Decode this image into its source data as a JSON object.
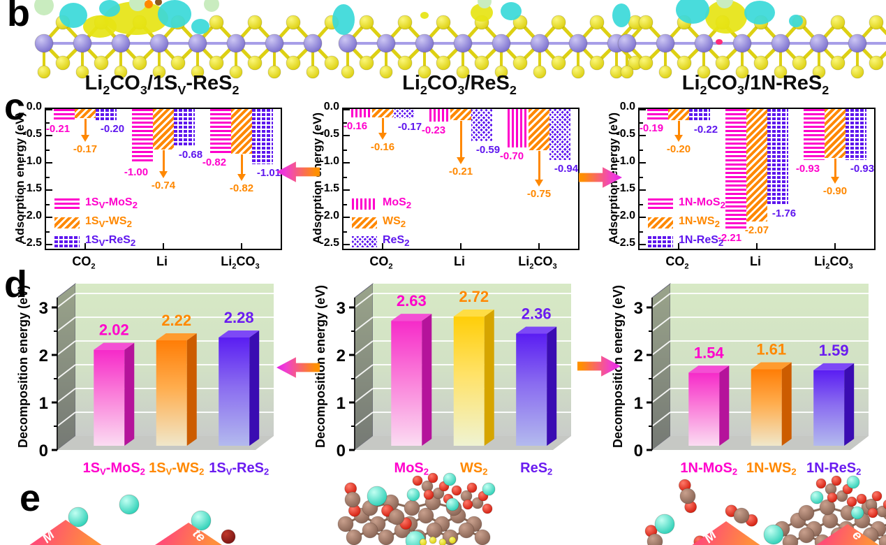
{
  "panel_labels": {
    "b": "b",
    "c": "c",
    "d": "d",
    "e": "e"
  },
  "columns": [
    {
      "title": "Li~2~CO~3~/1S~V~-ReS~2~"
    },
    {
      "title": "Li~2~CO~3~/ReS~2~"
    },
    {
      "title": "Li~2~CO~3~/1N-ReS~2~"
    }
  ],
  "colors": {
    "magenta": "#ff00cc",
    "orange": "#ff8800",
    "purple": "#5e16ee",
    "gold": "#ffc800"
  },
  "banners": [
    {
      "text": "M"
    },
    {
      "text": "te"
    },
    {
      "text": "M"
    },
    {
      "text": "e"
    }
  ],
  "chart_data": [
    {
      "id": "adsorption-1sv",
      "type": "bar",
      "title": "Li~2~CO~3~/1S~V~-ReS~2~",
      "ylabel": "Adsorption energy (eV)",
      "ylim": [
        -2.5,
        0
      ],
      "yticks": [
        "0.0",
        "-0.5",
        "-1.0",
        "-1.5",
        "-2.0",
        "-2.5"
      ],
      "categories": [
        "CO~2~",
        "Li",
        "Li~2~CO~3~"
      ],
      "legend_position": "inside bottom-left",
      "grid": false,
      "series": [
        {
          "name": "1S~V~-MoS~2~",
          "color": "#ff00cc",
          "pattern": "h",
          "values": [
            -0.21,
            -1.0,
            -0.82
          ]
        },
        {
          "name": "1S~V~-WS~2~",
          "color": "#ff8800",
          "pattern": "d",
          "values": [
            -0.17,
            -0.74,
            -0.82
          ]
        },
        {
          "name": "1S~V~-ReS~2~",
          "color": "#5e16ee",
          "pattern": "g",
          "values": [
            -0.2,
            -0.68,
            -1.01
          ]
        }
      ],
      "annotations": {
        "arrow": [
          true,
          true,
          true
        ],
        "arrow_label_at": [
          0.62,
          1.28,
          1.33
        ]
      }
    },
    {
      "id": "adsorption-pristine",
      "type": "bar",
      "title": "Li~2~CO~3~/ReS~2~",
      "ylabel": "Adsorption energy (eV)",
      "ylim": [
        -2.5,
        0
      ],
      "yticks": [
        "0.0",
        "-0.5",
        "-1.0",
        "-1.5",
        "-2.0",
        "-2.5"
      ],
      "categories": [
        "CO~2~",
        "Li",
        "Li~2~CO~3~"
      ],
      "legend_position": "inside bottom-left",
      "grid": false,
      "series": [
        {
          "name": "MoS~2~",
          "color": "#ff00cc",
          "pattern": "v",
          "values": [
            -0.16,
            -0.23,
            -0.7
          ]
        },
        {
          "name": "WS~2~",
          "color": "#ff8800",
          "pattern": "d",
          "values": [
            -0.16,
            -0.21,
            -0.75
          ]
        },
        {
          "name": "ReS~2~",
          "color": "#5e16ee",
          "pattern": "x",
          "values": [
            -0.17,
            -0.59,
            -0.94
          ]
        }
      ],
      "annotations": {
        "arrow": [
          true,
          true,
          true
        ],
        "arrow_label_at": [
          0.58,
          1.02,
          1.43
        ]
      }
    },
    {
      "id": "adsorption-1n",
      "type": "bar",
      "title": "Li~2~CO~3~/1N-ReS~2~",
      "ylabel": "Adsorption energy (eV)",
      "ylim": [
        -2.5,
        0
      ],
      "yticks": [
        "0.0",
        "-0.5",
        "-1.0",
        "-1.5",
        "-2.0",
        "-2.5"
      ],
      "categories": [
        "CO~2~",
        "Li",
        "Li~2~CO~3~"
      ],
      "legend_position": "inside bottom-left",
      "grid": false,
      "series": [
        {
          "name": "1N-MoS~2~",
          "color": "#ff00cc",
          "pattern": "h",
          "values": [
            -0.19,
            -2.21,
            -0.93
          ]
        },
        {
          "name": "1N-WS~2~",
          "color": "#ff8800",
          "pattern": "d",
          "values": [
            -0.2,
            -2.07,
            -0.9
          ]
        },
        {
          "name": "1N-ReS~2~",
          "color": "#5e16ee",
          "pattern": "g",
          "values": [
            -0.22,
            -1.76,
            -0.93
          ]
        }
      ],
      "annotations": {
        "arrow": [
          true,
          false,
          true
        ],
        "arrow_label_at": [
          0.62,
          0,
          1.38
        ]
      }
    },
    {
      "id": "decomposition-1sv",
      "type": "bar3d",
      "title": "Li~2~CO~3~/1S~V~-ReS~2~",
      "ylabel": "Decomposition energy (eV)",
      "ylim": [
        0,
        3
      ],
      "yticks": [
        "0",
        "1",
        "2",
        "3"
      ],
      "categories": [
        "1S~V~-MoS~2~",
        "1S~V~-WS~2~",
        "1S~V~-ReS~2~"
      ],
      "values": [
        2.02,
        2.22,
        2.28
      ],
      "colors": [
        "#ff00cc",
        "#ff7700",
        "#5516ee"
      ],
      "label_colors": [
        "#ff00cc",
        "#ff8800",
        "#6a1bf0"
      ]
    },
    {
      "id": "decomposition-pristine",
      "type": "bar3d",
      "title": "Li~2~CO~3~/ReS~2~",
      "ylabel": "Decomposition energy (eV)",
      "ylim": [
        0,
        3
      ],
      "yticks": [
        "0",
        "1",
        "2",
        "3"
      ],
      "categories": [
        "MoS~2~",
        "WS~2~",
        "ReS~2~"
      ],
      "values": [
        2.63,
        2.72,
        2.36
      ],
      "colors": [
        "#ff00cc",
        "#ffc800",
        "#5516ee"
      ],
      "label_colors": [
        "#ff00cc",
        "#ff8800",
        "#6a1bf0"
      ]
    },
    {
      "id": "decomposition-1n",
      "type": "bar3d",
      "title": "Li~2~CO~3~/1N-ReS~2~",
      "ylabel": "Decomposition energy (eV)",
      "ylim": [
        0,
        3
      ],
      "yticks": [
        "0",
        "1",
        "2",
        "3"
      ],
      "categories": [
        "1N-MoS~2~",
        "1N-WS~2~",
        "1N-ReS~2~"
      ],
      "values": [
        1.54,
        1.61,
        1.59
      ],
      "colors": [
        "#ff00cc",
        "#ff7700",
        "#5516ee"
      ],
      "label_colors": [
        "#ff00cc",
        "#ff8800",
        "#6a1bf0"
      ]
    }
  ]
}
